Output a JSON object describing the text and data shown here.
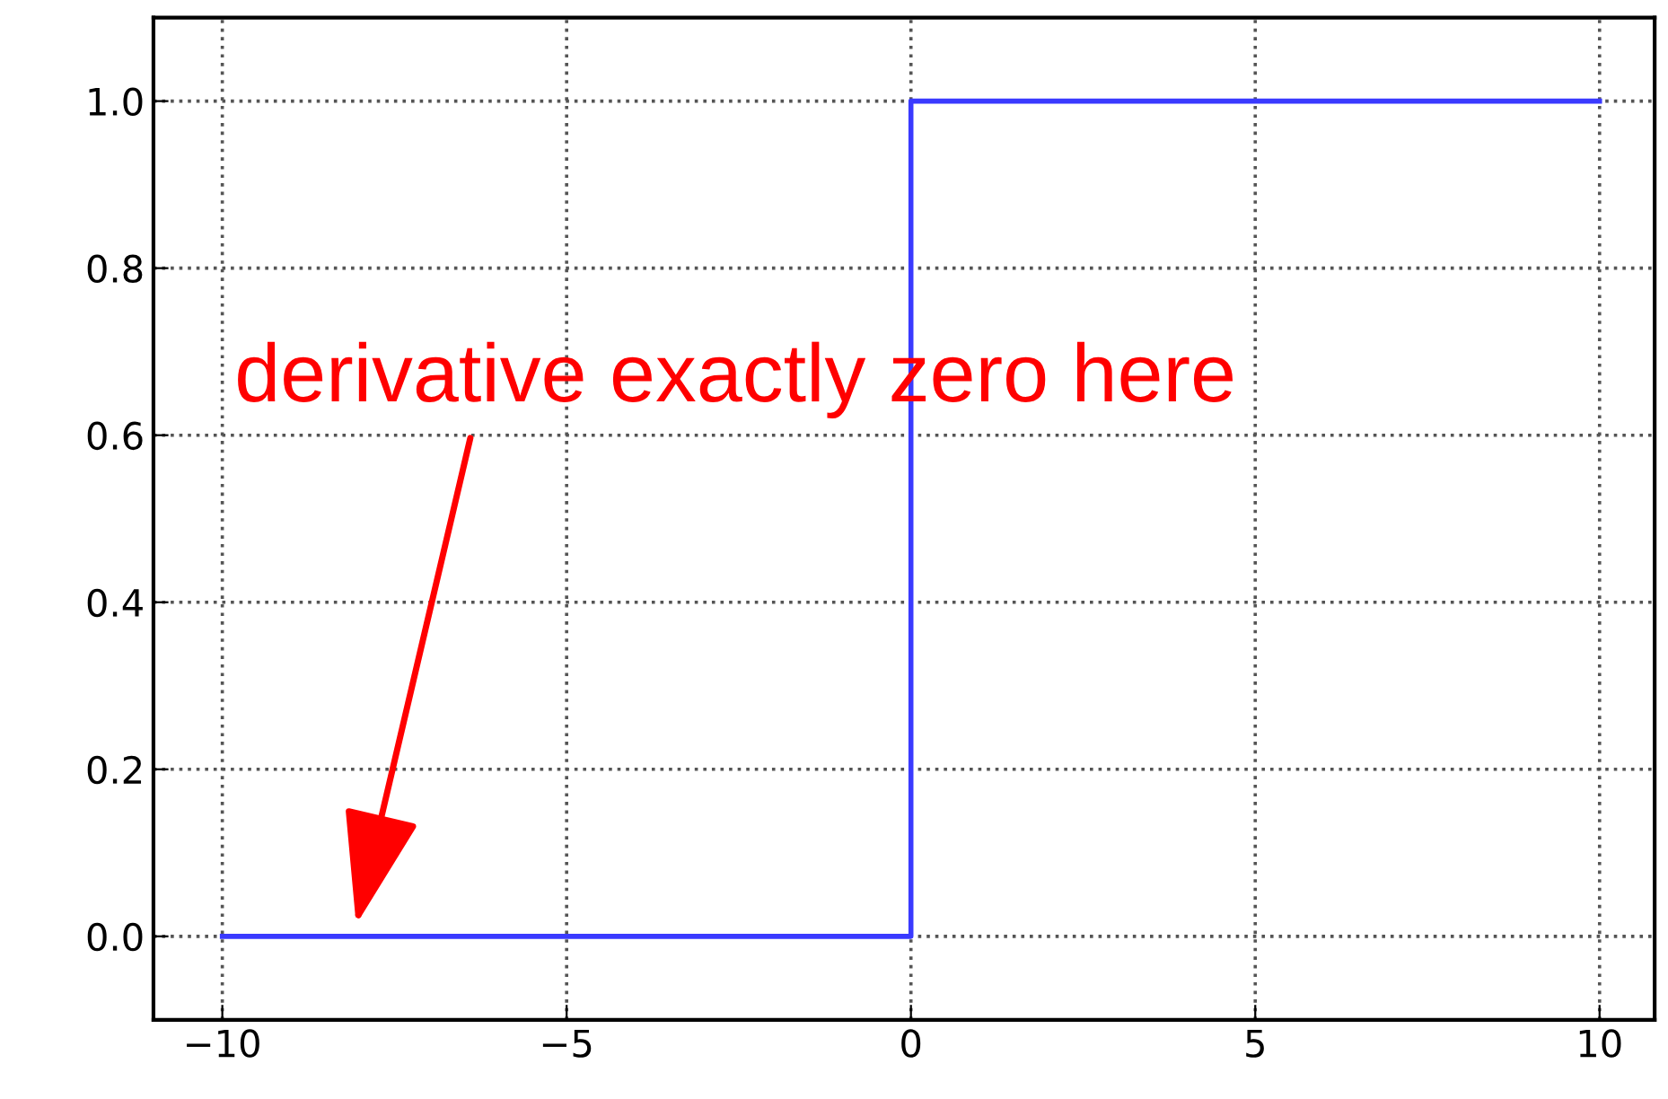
{
  "chart_data": {
    "type": "line",
    "x": [
      -10,
      0,
      0,
      10
    ],
    "series": [
      {
        "color": "#3a3aff",
        "values": [
          0,
          0,
          1,
          1
        ]
      }
    ],
    "xlim": [
      -11,
      10.8
    ],
    "ylim": [
      -0.1,
      1.1
    ],
    "xticks": [
      {
        "value": -10,
        "label": "−10"
      },
      {
        "value": -5,
        "label": "−5"
      },
      0,
      5,
      10
    ],
    "yticks": [
      {
        "value": 0,
        "label": "0.0"
      },
      {
        "value": 0.2,
        "label": "0.2"
      },
      {
        "value": 0.4,
        "label": "0.4"
      },
      {
        "value": 0.6,
        "label": "0.6"
      },
      {
        "value": 0.8,
        "label": "0.8"
      },
      {
        "value": 1,
        "label": "1.0"
      }
    ],
    "grid": true,
    "marker": "none",
    "line_style": "solid",
    "annotations": [
      "derivative exactly zero here"
    ]
  }
}
